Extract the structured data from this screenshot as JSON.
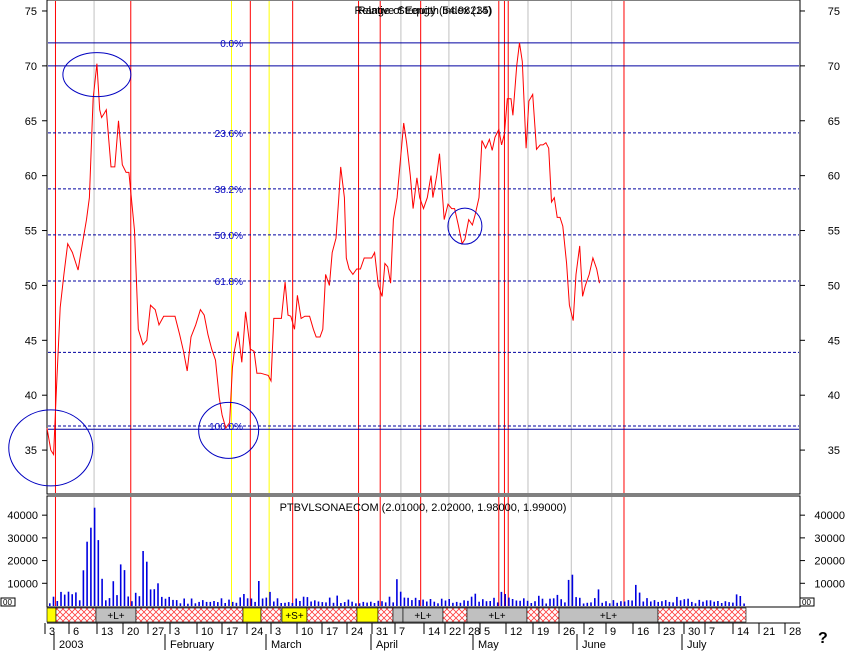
{
  "chart_data": [
    {
      "type": "line",
      "title": "Relative Strength Index (14)",
      "overlay_title": "Range of Equity (54.98235)",
      "ylim": [
        31,
        76
      ],
      "yticks": [
        35,
        40,
        45,
        50,
        55,
        60,
        65,
        70,
        75
      ],
      "fib_levels": [
        {
          "label": "0.0%",
          "value": 72.1
        },
        {
          "label": "23.6%",
          "value": 63.9
        },
        {
          "label": "38.2%",
          "value": 58.8
        },
        {
          "label": "50.0%",
          "value": 54.6
        },
        {
          "label": "61.8%",
          "value": 50.4
        },
        {
          "label": "100.0%",
          "value": 37.2
        }
      ],
      "horizontal_lines": [
        72.1,
        70.0,
        63.9,
        58.8,
        54.6,
        50.4,
        43.9,
        37.2,
        36.9
      ],
      "series": [
        {
          "color": "#ff0000",
          "points": [
            [
              0,
              37
            ],
            [
              4,
              35
            ],
            [
              7,
              34.6
            ],
            [
              10,
              40.5
            ],
            [
              14,
              48
            ],
            [
              18,
              51
            ],
            [
              22,
              53.8
            ],
            [
              27,
              53
            ],
            [
              33,
              51.4
            ],
            [
              36,
              53
            ],
            [
              42,
              56
            ],
            [
              45,
              58
            ],
            [
              49,
              67
            ],
            [
              53,
              70.2
            ],
            [
              56,
              66
            ],
            [
              58,
              65.3
            ],
            [
              61,
              65.7
            ],
            [
              63,
              66
            ],
            [
              68,
              60.8
            ],
            [
              72,
              60.8
            ],
            [
              76,
              65
            ],
            [
              80,
              61
            ],
            [
              84,
              60.3
            ],
            [
              87,
              60.3
            ],
            [
              89,
              58.5
            ],
            [
              93,
              55
            ],
            [
              97,
              46
            ],
            [
              102,
              44.6
            ],
            [
              106,
              45
            ],
            [
              110,
              48.2
            ],
            [
              115,
              47.8
            ],
            [
              119,
              46.4
            ],
            [
              124,
              47.2
            ],
            [
              130,
              47.2
            ],
            [
              136,
              47.2
            ],
            [
              141,
              45.5
            ],
            [
              145,
              44
            ],
            [
              149,
              42.2
            ],
            [
              153,
              45.3
            ],
            [
              158,
              46.4
            ],
            [
              163,
              47.8
            ],
            [
              167,
              47.3
            ],
            [
              171,
              45.5
            ],
            [
              175,
              44.2
            ],
            [
              179,
              43.2
            ],
            [
              183,
              39.8
            ],
            [
              186,
              38.2
            ],
            [
              190,
              37
            ],
            [
              194,
              37.5
            ],
            [
              197,
              42.5
            ],
            [
              199,
              44
            ],
            [
              203,
              45.8
            ],
            [
              207,
              43
            ],
            [
              211,
              47.6
            ],
            [
              216,
              44.2
            ],
            [
              220,
              44
            ],
            [
              223,
              42
            ],
            [
              227,
              42
            ],
            [
              231,
              41.9
            ],
            [
              235,
              41.8
            ],
            [
              238,
              41.3
            ],
            [
              241,
              47
            ],
            [
              245,
              47
            ],
            [
              249,
              47
            ],
            [
              253,
              50.3
            ],
            [
              256,
              47.3
            ],
            [
              259,
              47.2
            ],
            [
              263,
              46
            ],
            [
              266,
              49.1
            ],
            [
              270,
              47
            ],
            [
              274,
              47.2
            ],
            [
              279,
              47.2
            ],
            [
              283,
              46
            ],
            [
              286,
              45.3
            ],
            [
              290,
              45.3
            ],
            [
              293,
              46
            ],
            [
              296,
              51
            ],
            [
              300,
              50
            ],
            [
              303,
              53
            ],
            [
              307,
              54.3
            ],
            [
              310,
              58
            ],
            [
              312,
              60.8
            ],
            [
              316,
              58
            ],
            [
              318,
              52.5
            ],
            [
              321,
              51.5
            ],
            [
              325,
              51
            ],
            [
              329,
              51.5
            ],
            [
              333,
              51.5
            ],
            [
              337,
              52.5
            ],
            [
              341,
              52.5
            ],
            [
              345,
              52.5
            ],
            [
              348,
              53
            ],
            [
              352,
              50
            ],
            [
              356,
              49
            ],
            [
              359,
              52
            ],
            [
              362,
              51.7
            ],
            [
              365,
              50.2
            ],
            [
              368,
              56
            ],
            [
              372,
              58
            ],
            [
              375,
              61
            ],
            [
              379,
              64.8
            ],
            [
              382,
              63
            ],
            [
              386,
              60
            ],
            [
              389,
              57
            ],
            [
              393,
              59.8
            ],
            [
              396,
              58
            ],
            [
              400,
              57
            ],
            [
              404,
              58
            ],
            [
              408,
              60
            ],
            [
              410,
              58
            ],
            [
              414,
              60
            ],
            [
              417,
              62
            ],
            [
              422,
              56
            ],
            [
              426,
              57.4
            ],
            [
              430,
              57
            ],
            [
              433,
              57
            ],
            [
              437,
              55.5
            ],
            [
              441,
              53.8
            ],
            [
              444,
              54.2
            ],
            [
              448,
              56
            ],
            [
              452,
              55.5
            ],
            [
              455,
              56.5
            ],
            [
              459,
              58
            ],
            [
              462,
              63.2
            ],
            [
              466,
              62.5
            ],
            [
              470,
              63.3
            ],
            [
              473,
              62.3
            ],
            [
              476,
              63.5
            ],
            [
              480,
              64.2
            ],
            [
              483,
              62.8
            ],
            [
              486,
              63.8
            ],
            [
              489,
              67
            ],
            [
              493,
              67
            ],
            [
              495,
              65.5
            ],
            [
              499,
              70
            ],
            [
              502,
              72.1
            ],
            [
              505,
              70.4
            ],
            [
              509,
              62.5
            ],
            [
              512,
              66.8
            ],
            [
              516,
              67.4
            ],
            [
              520,
              62.4
            ],
            [
              524,
              62.8
            ],
            [
              527,
              62.8
            ],
            [
              530,
              63
            ],
            [
              533,
              62.5
            ],
            [
              536,
              57.6
            ],
            [
              539,
              58
            ],
            [
              542,
              56.2
            ],
            [
              545,
              56.2
            ],
            [
              548,
              55.4
            ],
            [
              552,
              52
            ],
            [
              555,
              48.2
            ],
            [
              559,
              46.8
            ],
            [
              562,
              51
            ],
            [
              566,
              53.6
            ],
            [
              569,
              49
            ],
            [
              572,
              50
            ],
            [
              576,
              51
            ],
            [
              580,
              52.5
            ],
            [
              584,
              51.5
            ],
            [
              587,
              50.2
            ]
          ]
        }
      ],
      "circles": [
        {
          "x": 4,
          "y": 35.2
        },
        {
          "x": 53,
          "y": 69.2
        },
        {
          "x": 193,
          "y": 36.8
        },
        {
          "x": 444,
          "y": 55.4
        }
      ]
    },
    {
      "type": "bar",
      "title": "PTBVLSONAECOM (2.01000, 2.02000, 1.98000, 1.99000)",
      "ylim": [
        0,
        48000
      ],
      "yticks": [
        10000,
        20000,
        30000,
        40000
      ],
      "ytick_labels": [
        "10000",
        "20000",
        "30000",
        "40000"
      ],
      "left_stub_label": "00",
      "right_stub_label": "00",
      "values": [
        1200,
        4100,
        2200,
        6200,
        5000,
        6300,
        5200,
        6000,
        2500,
        15700,
        28300,
        34500,
        43300,
        29000,
        12000,
        2500,
        3500,
        10900,
        4800,
        18300,
        15800,
        4200,
        2100,
        5800,
        4300,
        24200,
        19500,
        7300,
        7400,
        10000,
        4000,
        3200,
        4000,
        2700,
        2600,
        1200,
        3300,
        1000,
        3300,
        1200,
        1800,
        2600,
        1800,
        1800,
        2200,
        1700,
        3400,
        1300,
        2800,
        1800,
        1400,
        3800,
        5300,
        3400,
        3300,
        1800,
        11000,
        3300,
        3700,
        6200,
        2000,
        3400,
        1300,
        1400,
        1700,
        1300,
        3300,
        2200,
        4100,
        3900,
        2000,
        2500,
        2000,
        1700,
        1600,
        3700,
        1400,
        4600,
        1300,
        1700,
        2800,
        1900,
        1200,
        1200,
        1800,
        1500,
        1900,
        1300,
        2300,
        2100,
        1600,
        4100,
        1600,
        11800,
        6300,
        3700,
        3600,
        2600,
        3600,
        2600,
        2800,
        2000,
        3100,
        1900,
        1200,
        3200,
        2400,
        3100,
        1400,
        1800,
        1400,
        2500,
        2300,
        4100,
        5400,
        1900,
        3000,
        2100,
        2200,
        3600,
        1600,
        6200,
        5300,
        3700,
        3100,
        2400,
        2300,
        3400,
        2300,
        1300,
        2100,
        4500,
        3200,
        1100,
        3200,
        3400,
        4900,
        3000,
        1600,
        11500,
        13800,
        3900,
        3600,
        1100,
        1400,
        1600,
        3500,
        7300,
        1400,
        2100,
        1200,
        2600,
        1400,
        2100,
        2000,
        2600,
        2400,
        9300,
        5900,
        2000,
        3500,
        2000,
        2600,
        1800,
        2100,
        2600,
        1800,
        1600,
        4000,
        2500,
        3000,
        3200,
        1800,
        1200,
        2700,
        1900,
        2500,
        2500,
        1900,
        2200,
        1300,
        2100,
        1700,
        1500,
        5100,
        4400,
        1100
      ]
    }
  ],
  "time_axis": {
    "days": [
      "3",
      "6",
      "13",
      "20",
      "27",
      "3",
      "10",
      "17",
      "24",
      "3",
      "10",
      "17",
      "24",
      "31",
      "7",
      "14",
      "22",
      "28",
      "5",
      "12",
      "19",
      "26",
      "2",
      "9",
      "16",
      "23",
      "30",
      "7",
      "14",
      "21",
      "28"
    ],
    "months": [
      "2003",
      "February",
      "March",
      "April",
      "May",
      "June",
      "July"
    ],
    "help_icon": "?"
  },
  "signal_strip": {
    "items": [
      {
        "label": "+L+"
      },
      {
        "label": "+S+"
      },
      {
        "label": "+L+"
      },
      {
        "label": "+L+"
      },
      {
        "label": "+L+"
      }
    ]
  }
}
